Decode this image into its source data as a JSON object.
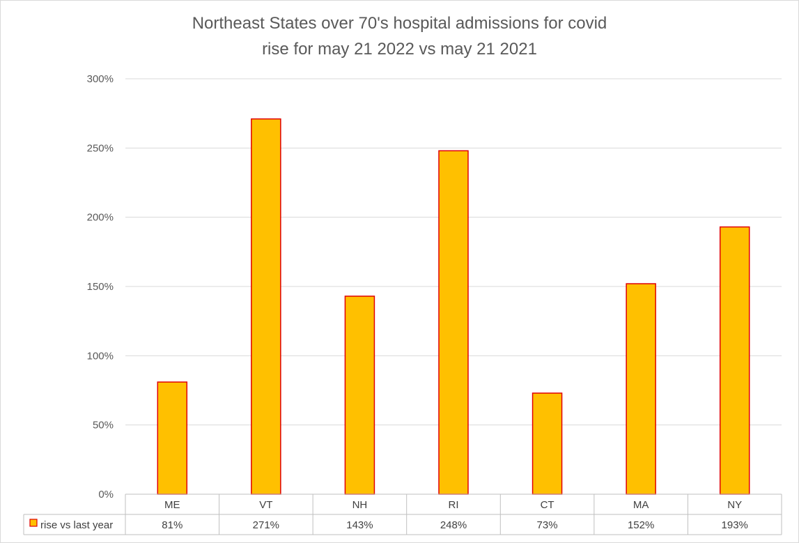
{
  "chart_data": {
    "type": "bar",
    "title_lines": [
      "Northeast States over 70's hospital admissions for covid",
      "rise for may 21 2022 vs may 21 2021"
    ],
    "categories": [
      "ME",
      "VT",
      "NH",
      "RI",
      "CT",
      "MA",
      "NY"
    ],
    "series": [
      {
        "name": "rise vs last year",
        "values": [
          81,
          271,
          143,
          248,
          73,
          152,
          193
        ],
        "labels": [
          "81%",
          "271%",
          "143%",
          "248%",
          "73%",
          "152%",
          "193%"
        ],
        "fill": "#FFC000",
        "stroke": "#E00000"
      }
    ],
    "ylim": [
      0,
      300
    ],
    "yticks": [
      0,
      50,
      100,
      150,
      200,
      250,
      300
    ],
    "ytick_labels": [
      "0%",
      "50%",
      "100%",
      "150%",
      "200%",
      "250%",
      "300%"
    ],
    "grid": true,
    "data_table": true,
    "legend_position": "data-table"
  },
  "colors": {
    "grid": "#d9d9d9",
    "table_border": "#bfbfbf",
    "text": "#595959"
  }
}
